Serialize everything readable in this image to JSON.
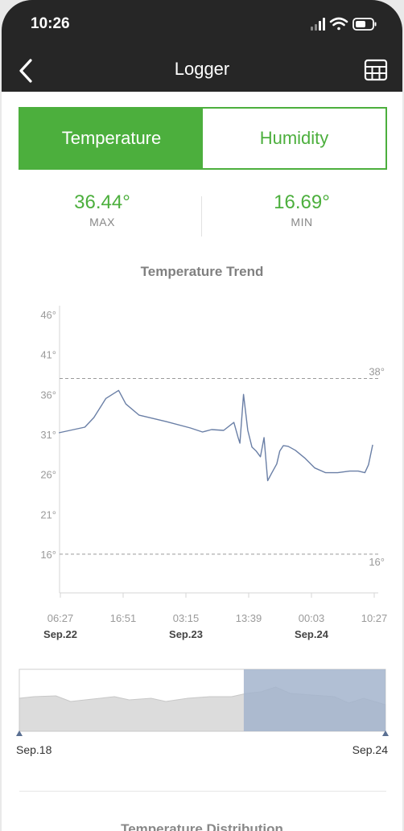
{
  "status_bar": {
    "time": "10:26"
  },
  "nav": {
    "title": "Logger"
  },
  "tabs": [
    {
      "label": "Temperature",
      "active": true
    },
    {
      "label": "Humidity",
      "active": false
    }
  ],
  "stats": {
    "max": {
      "value": "36.44°",
      "label": "MAX"
    },
    "min": {
      "value": "16.69°",
      "label": "MIN"
    }
  },
  "colors": {
    "accent": "#4caf3d",
    "line": "#6a7fa6",
    "header": "#262626",
    "selection": "#a3b4cc"
  },
  "chart_data": {
    "type": "line",
    "title": "Temperature Trend",
    "y_ticks": [
      "46°",
      "41°",
      "36°",
      "31°",
      "26°",
      "21°",
      "16°"
    ],
    "y_tick_values": [
      46,
      41,
      36,
      31,
      26,
      21,
      16
    ],
    "ylim": [
      11,
      47
    ],
    "x_ticks": [
      {
        "time": "06:27",
        "date": "Sep.22"
      },
      {
        "time": "16:51",
        "date": ""
      },
      {
        "time": "03:15",
        "date": "Sep.23"
      },
      {
        "time": "13:39",
        "date": ""
      },
      {
        "time": "00:03",
        "date": "Sep.24"
      },
      {
        "time": "10:27",
        "date": ""
      }
    ],
    "x_tick_hours": [
      6.45,
      16.85,
      27.25,
      37.65,
      48.05,
      58.45
    ],
    "reference_lines": [
      {
        "value": 38,
        "label": "38°"
      },
      {
        "value": 16,
        "label": "16°"
      }
    ],
    "series": [
      {
        "x_hours": [
          6.2,
          10.5,
          12.0,
          14.0,
          16.1,
          17.3,
          19.5,
          24.0,
          28.0,
          30.0,
          31.5,
          33.5,
          35.2,
          35.9,
          36.2,
          36.8,
          37.5,
          38.2,
          38.9,
          39.6,
          40.2,
          40.8,
          41.5,
          42.3,
          42.8,
          43.4,
          44.2,
          45.4,
          47.0,
          48.6,
          50.4,
          52.4,
          54.4,
          55.8,
          56.9,
          57.5,
          58.2
        ],
        "values": [
          31.2,
          31.9,
          33.1,
          35.5,
          36.5,
          34.8,
          33.4,
          32.6,
          31.8,
          31.3,
          31.6,
          31.5,
          32.5,
          30.6,
          29.9,
          36.0,
          31.5,
          29.4,
          28.9,
          28.2,
          30.6,
          25.2,
          26.2,
          27.3,
          28.9,
          29.6,
          29.5,
          29.0,
          28.0,
          26.8,
          26.2,
          26.2,
          26.4,
          26.4,
          26.2,
          27.2,
          29.7
        ]
      }
    ]
  },
  "navigator": {
    "start_label": "Sep.18",
    "end_label": "Sep.24",
    "selection": [
      0.613,
      1.0
    ]
  },
  "next_section": {
    "title": "Temperature Distribution"
  }
}
